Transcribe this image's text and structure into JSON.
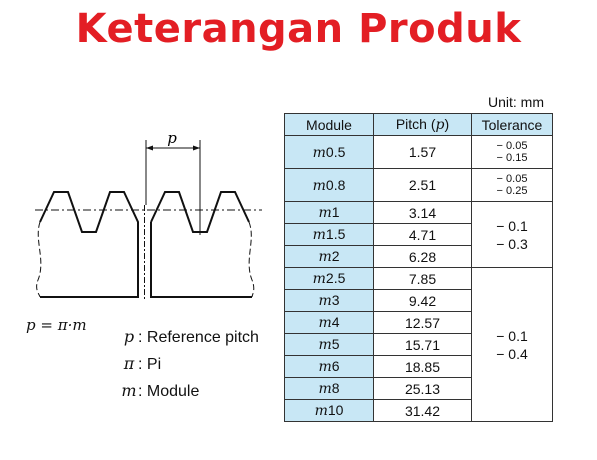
{
  "title": "Keterangan Produk",
  "unit": "Unit: mm",
  "diagram": {
    "pitch_symbol": "p",
    "formula": "p = π·m"
  },
  "legend": [
    {
      "symbol": "p",
      "text": ": Reference pitch"
    },
    {
      "symbol": "π",
      "text": ": Pi"
    },
    {
      "symbol": "m",
      "text": ": Module"
    }
  ],
  "table": {
    "headers": [
      "Module",
      "Pitch (",
      "p",
      ")",
      "Tolerance"
    ],
    "rows": [
      {
        "m": "m",
        "module": "0.5",
        "pitch": "1.57"
      },
      {
        "m": "m",
        "module": "0.8",
        "pitch": "2.51"
      },
      {
        "m": "m",
        "module": "1",
        "pitch": "3.14"
      },
      {
        "m": "m",
        "module": "1.5",
        "pitch": "4.71"
      },
      {
        "m": "m",
        "module": "2",
        "pitch": "6.28"
      },
      {
        "m": "m",
        "module": "2.5",
        "pitch": "7.85"
      },
      {
        "m": "m",
        "module": "3",
        "pitch": "9.42"
      },
      {
        "m": "m",
        "module": "4",
        "pitch": "12.57"
      },
      {
        "m": "m",
        "module": "5",
        "pitch": "15.71"
      },
      {
        "m": "m",
        "module": "6",
        "pitch": "18.85"
      },
      {
        "m": "m",
        "module": "8",
        "pitch": "25.13"
      },
      {
        "m": "m",
        "module": "10",
        "pitch": "31.42"
      }
    ],
    "tolerances": [
      {
        "upper": "− 0.05",
        "lower": "− 0.15"
      },
      {
        "upper": "− 0.05",
        "lower": "− 0.25"
      },
      {
        "upper": "− 0.1",
        "lower": "− 0.3"
      },
      {
        "upper": "− 0.1",
        "lower": "− 0.4"
      }
    ]
  }
}
